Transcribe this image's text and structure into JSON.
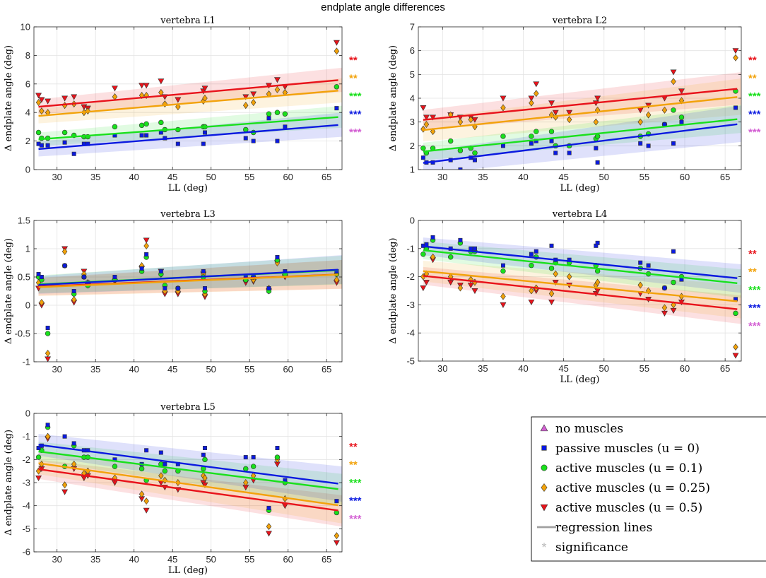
{
  "figure_title": "endplate angle differences",
  "colors": {
    "no_muscles": "#d35fd3",
    "passive": "#0b1ae0",
    "active_01": "#19e01c",
    "active_025": "#f2a20a",
    "active_05": "#e8131b",
    "regression": "#a0a0a0",
    "significance": "#bbbbbb"
  },
  "legend": {
    "entries": [
      {
        "key": "no_muscles",
        "marker": "triangle",
        "label": "no muscles"
      },
      {
        "key": "passive",
        "marker": "square",
        "label": "passive muscles (u = 0)"
      },
      {
        "key": "active_01",
        "marker": "circle",
        "label": "active muscles (u = 0.1)"
      },
      {
        "key": "active_025",
        "marker": "diamond",
        "label": "active muscles (u = 0.25)"
      },
      {
        "key": "active_05",
        "marker": "triangle-down",
        "label": "active muscles (u = 0.5)"
      },
      {
        "key": "regression",
        "marker": "line",
        "label": "regression lines"
      },
      {
        "key": "significance",
        "marker": "asterisk",
        "label": "significance"
      }
    ]
  },
  "chart_data": [
    {
      "type": "scatter",
      "title": "vertebra L1",
      "xlabel": "LL (deg)",
      "ylabel": "Δ endplate angle (deg)",
      "xlim": [
        27,
        67
      ],
      "ylim": [
        0,
        10
      ],
      "xticks": [
        30,
        35,
        40,
        45,
        50,
        55,
        60,
        65
      ],
      "yticks": [
        0,
        2,
        4,
        6,
        8,
        10
      ],
      "x": [
        27.6,
        28,
        28.8,
        31,
        32.2,
        33.5,
        34,
        37.5,
        41,
        41.6,
        43.5,
        44,
        45.7,
        49,
        49.2,
        54.5,
        55.5,
        57.5,
        58.6,
        59.6,
        66.3
      ],
      "series": [
        {
          "name": "active_05",
          "values": [
            5.2,
            4.9,
            4.8,
            5.0,
            5.1,
            4.4,
            4.3,
            5.7,
            5.9,
            5.9,
            6.2,
            5.1,
            4.9,
            5.5,
            5.7,
            5.1,
            5.3,
            5.9,
            6.3,
            5.8,
            8.9
          ],
          "intercept": 4.4,
          "slope": 0.0479,
          "ci": 0.5
        },
        {
          "name": "active_025",
          "values": [
            4.7,
            4.1,
            4.0,
            4.5,
            4.6,
            4.0,
            4.1,
            5.1,
            5.2,
            5.2,
            5.4,
            4.6,
            4.4,
            4.8,
            5.0,
            4.5,
            4.7,
            5.3,
            5.6,
            5.4,
            8.3
          ],
          "intercept": 3.76,
          "slope": 0.0455,
          "ci": 0.5
        },
        {
          "name": "active_01",
          "values": [
            2.6,
            2.2,
            2.2,
            2.6,
            2.4,
            2.3,
            2.3,
            3.0,
            3.1,
            3.2,
            3.3,
            2.8,
            2.8,
            3.0,
            3.0,
            2.8,
            2.6,
            3.9,
            4.0,
            3.9,
            5.8
          ],
          "intercept": 2.12,
          "slope": 0.0401,
          "ci": 0.45
        },
        {
          "name": "passive",
          "values": [
            1.8,
            1.7,
            1.7,
            1.9,
            1.1,
            1.8,
            1.8,
            2.4,
            2.4,
            2.4,
            2.6,
            2.2,
            1.8,
            1.8,
            2.6,
            2.2,
            2.0,
            3.6,
            2.0,
            3.0,
            4.3
          ],
          "intercept": 1.44,
          "slope": 0.0433,
          "ci": 0.5
        }
      ],
      "significance": [
        {
          "series": "active_05",
          "label": "**"
        },
        {
          "series": "active_025",
          "label": "**"
        },
        {
          "series": "active_01",
          "label": "***"
        },
        {
          "series": "passive",
          "label": "***"
        },
        {
          "series": "no_muscles",
          "label": "***"
        }
      ]
    },
    {
      "type": "scatter",
      "title": "vertebra L2",
      "xlabel": "LL (deg)",
      "ylabel": "Δ endplate angle (deg)",
      "xlim": [
        27,
        67
      ],
      "ylim": [
        1,
        7
      ],
      "xticks": [
        30,
        35,
        40,
        45,
        50,
        55,
        60,
        65
      ],
      "yticks": [
        1,
        2,
        3,
        4,
        5,
        6,
        7
      ],
      "x": [
        27.6,
        28,
        28.8,
        31,
        32.2,
        33.5,
        34,
        37.5,
        41,
        41.6,
        43.5,
        44,
        45.7,
        49,
        49.2,
        54.5,
        55.5,
        57.5,
        58.6,
        59.6,
        66.3
      ],
      "series": [
        {
          "name": "active_05",
          "values": [
            3.6,
            3.2,
            3.2,
            3.3,
            3.2,
            3.2,
            3.1,
            4.0,
            4.0,
            4.6,
            3.8,
            3.4,
            3.4,
            3.8,
            4.0,
            3.5,
            3.7,
            4.0,
            5.1,
            4.3,
            6.0
          ],
          "intercept": 3.09,
          "slope": 0.0336,
          "ci": 0.4
        },
        {
          "name": "active_025",
          "values": [
            2.7,
            2.9,
            2.6,
            3.3,
            3.0,
            3.1,
            2.8,
            3.6,
            3.8,
            4.2,
            3.3,
            3.2,
            3.1,
            3.0,
            3.5,
            3.0,
            3.3,
            3.5,
            4.7,
            3.9,
            5.7
          ],
          "intercept": 2.66,
          "slope": 0.0357,
          "ci": 0.45
        },
        {
          "name": "active_01",
          "values": [
            1.9,
            1.7,
            1.9,
            2.2,
            1.8,
            1.9,
            1.7,
            2.4,
            2.4,
            2.6,
            2.6,
            2.0,
            2.0,
            2.3,
            2.4,
            2.4,
            2.5,
            2.9,
            3.5,
            3.2,
            4.3
          ],
          "intercept": 1.76,
          "slope": 0.0349,
          "ci": 0.35
        },
        {
          "name": "passive",
          "values": [
            1.5,
            1.3,
            1.3,
            1.4,
            1.0,
            1.5,
            1.4,
            2.0,
            2.1,
            2.2,
            2.2,
            1.7,
            1.7,
            1.9,
            1.3,
            2.1,
            2.0,
            2.9,
            2.1,
            3.0,
            3.6
          ],
          "intercept": 1.28,
          "slope": 0.0418,
          "ci": 0.45
        }
      ],
      "significance": [
        {
          "series": "active_05",
          "label": "**"
        },
        {
          "series": "active_025",
          "label": "**"
        },
        {
          "series": "active_01",
          "label": "***"
        },
        {
          "series": "passive",
          "label": "***"
        },
        {
          "series": "no_muscles",
          "label": "***"
        }
      ]
    },
    {
      "type": "scatter",
      "title": "vertebra L3",
      "xlabel": "",
      "ylabel": "Δ endplate angle (deg)",
      "xlim": [
        27,
        67
      ],
      "ylim": [
        -1,
        1.5
      ],
      "xticks": [
        30,
        35,
        40,
        45,
        50,
        55,
        60,
        65
      ],
      "yticks": [
        -1,
        -0.5,
        0,
        0.5,
        1,
        1.5
      ],
      "x": [
        27.6,
        28,
        28.8,
        31,
        32.2,
        33.5,
        34,
        37.5,
        41,
        41.6,
        43.5,
        44,
        45.7,
        49,
        49.2,
        54.5,
        55.5,
        57.5,
        58.6,
        59.6,
        66.3
      ],
      "series": [
        {
          "name": "active_05",
          "values": [
            0.3,
            0.0,
            -0.95,
            1.0,
            0.05,
            0.6,
            0.35,
            0.42,
            0.65,
            1.15,
            0.6,
            0.2,
            0.2,
            0.55,
            0.15,
            0.4,
            0.42,
            0.25,
            0.75,
            0.5,
            0.4
          ],
          "intercept": 0.33,
          "slope": 0.0055,
          "ci": 0.15
        },
        {
          "name": "active_025",
          "values": [
            0.4,
            0.05,
            -0.85,
            0.95,
            0.1,
            0.55,
            0.4,
            0.45,
            0.7,
            1.05,
            0.55,
            0.25,
            0.25,
            0.55,
            0.2,
            0.45,
            0.45,
            0.3,
            0.75,
            0.55,
            0.45
          ],
          "intercept": 0.32,
          "slope": 0.0057,
          "ci": 0.15
        },
        {
          "name": "active_01",
          "values": [
            0.5,
            0.45,
            -0.5,
            0.7,
            0.2,
            0.5,
            0.35,
            0.45,
            0.6,
            0.85,
            0.55,
            0.35,
            0.3,
            0.5,
            0.25,
            0.45,
            0.5,
            0.25,
            0.8,
            0.55,
            0.55
          ],
          "intercept": 0.37,
          "slope": 0.0064,
          "ci": 0.15
        },
        {
          "name": "passive",
          "values": [
            0.55,
            0.5,
            -0.4,
            0.7,
            0.25,
            0.5,
            0.4,
            0.5,
            0.65,
            0.9,
            0.6,
            0.3,
            0.3,
            0.6,
            0.3,
            0.5,
            0.5,
            0.3,
            0.85,
            0.6,
            0.6
          ],
          "intercept": 0.36,
          "slope": 0.0069,
          "ci": 0.15
        }
      ],
      "significance": []
    },
    {
      "type": "scatter",
      "title": "vertebra L4",
      "xlabel": "LL (deg)",
      "ylabel": "Δ endplate angle (deg)",
      "xlim": [
        27,
        67
      ],
      "ylim": [
        -5,
        0
      ],
      "xticks": [
        30,
        35,
        40,
        45,
        50,
        55,
        60,
        65
      ],
      "yticks": [
        -5,
        -4,
        -3,
        -2,
        -1,
        0
      ],
      "x": [
        27.6,
        28,
        28.8,
        31,
        32.2,
        33.5,
        34,
        37.5,
        41,
        41.6,
        43.5,
        44,
        45.7,
        49,
        49.2,
        54.5,
        55.5,
        57.5,
        58.6,
        59.6,
        66.3
      ],
      "series": [
        {
          "name": "active_05",
          "values": [
            -2.4,
            -2.2,
            -1.4,
            -2.2,
            -2.3,
            -2.3,
            -2.5,
            -3.0,
            -2.9,
            -2.5,
            -2.9,
            -2.2,
            -2.3,
            -2.6,
            -2.5,
            -2.6,
            -2.8,
            -3.3,
            -3.2,
            -2.9,
            -4.8
          ],
          "intercept": -1.97,
          "slope": -0.0305,
          "ci": 0.3
        },
        {
          "name": "active_025",
          "values": [
            -2.0,
            -1.9,
            -1.3,
            -2.0,
            -2.4,
            -2.1,
            -2.2,
            -2.7,
            -2.5,
            -2.4,
            -2.6,
            -1.9,
            -2.0,
            -2.3,
            -2.2,
            -2.3,
            -2.5,
            -3.1,
            -3.0,
            -2.7,
            -4.5
          ],
          "intercept": -1.8,
          "slope": -0.0276,
          "ci": 0.35
        },
        {
          "name": "active_01",
          "values": [
            -1.2,
            -1.0,
            -0.7,
            -1.3,
            -0.8,
            -1.1,
            -1.1,
            -1.8,
            -1.6,
            -1.3,
            -1.7,
            -1.5,
            -1.5,
            -1.6,
            -1.8,
            -1.7,
            -1.9,
            -2.4,
            -2.2,
            -2.0,
            -3.3
          ],
          "intercept": -1.06,
          "slope": -0.0301,
          "ci": 0.3
        },
        {
          "name": "passive",
          "values": [
            -0.9,
            -0.85,
            -0.6,
            -1.0,
            -0.7,
            -1.0,
            -1.0,
            -1.6,
            -1.2,
            -1.1,
            -0.9,
            -1.4,
            -1.4,
            -0.9,
            -0.8,
            -1.5,
            -1.6,
            -2.4,
            -1.1,
            -2.1,
            -2.8
          ],
          "intercept": -0.92,
          "slope": -0.0291,
          "ci": 0.3
        }
      ],
      "significance": [
        {
          "series": "active_05",
          "label": "**"
        },
        {
          "series": "active_025",
          "label": "**"
        },
        {
          "series": "active_01",
          "label": "***"
        },
        {
          "series": "passive",
          "label": "***"
        },
        {
          "series": "no_muscles",
          "label": "***"
        }
      ]
    },
    {
      "type": "scatter",
      "title": "vertebra L5",
      "xlabel": "LL (deg)",
      "ylabel": "Δ endplate angle (deg)",
      "xlim": [
        27,
        67
      ],
      "ylim": [
        -6,
        0
      ],
      "xticks": [
        30,
        35,
        40,
        45,
        50,
        55,
        60,
        65
      ],
      "yticks": [
        -6,
        -5,
        -4,
        -3,
        -2,
        -1,
        0
      ],
      "x": [
        27.6,
        28,
        28.8,
        31,
        32.2,
        33.5,
        34,
        37.5,
        41,
        41.6,
        43.5,
        44,
        45.7,
        49,
        49.2,
        54.5,
        55.5,
        57.5,
        58.6,
        59.6,
        66.3
      ],
      "series": [
        {
          "name": "active_05",
          "values": [
            -2.8,
            -2.4,
            -1.1,
            -3.4,
            -2.4,
            -2.8,
            -2.7,
            -3.0,
            -3.7,
            -4.2,
            -3.0,
            -3.2,
            -3.3,
            -3.0,
            -3.1,
            -3.2,
            -2.9,
            -5.2,
            -2.2,
            -4.0,
            -5.6
          ],
          "intercept": -2.42,
          "slope": -0.0459,
          "ci": 0.4
        },
        {
          "name": "active_025",
          "values": [
            -2.5,
            -2.2,
            -1.0,
            -3.1,
            -2.2,
            -2.6,
            -2.5,
            -2.8,
            -3.5,
            -3.8,
            -2.7,
            -2.9,
            -3.0,
            -2.7,
            -2.8,
            -3.0,
            -2.7,
            -4.9,
            -2.0,
            -3.7,
            -5.3
          ],
          "intercept": -2.16,
          "slope": -0.0468,
          "ci": 0.45
        },
        {
          "name": "active_01",
          "values": [
            -1.9,
            -1.6,
            -0.6,
            -2.3,
            -1.4,
            -1.9,
            -1.9,
            -2.3,
            -2.4,
            -2.9,
            -2.2,
            -2.5,
            -2.5,
            -2.4,
            -2.0,
            -2.4,
            -2.3,
            -4.2,
            -1.9,
            -3.0,
            -4.3
          ],
          "intercept": -1.65,
          "slope": -0.0419,
          "ci": 0.4
        },
        {
          "name": "passive",
          "values": [
            -1.5,
            -1.4,
            -0.5,
            -1.0,
            -1.3,
            -1.6,
            -1.6,
            -2.0,
            -2.2,
            -1.6,
            -1.7,
            -2.2,
            -2.2,
            -1.8,
            -1.5,
            -1.9,
            -1.9,
            -4.1,
            -1.5,
            -2.9,
            -3.8
          ],
          "intercept": -1.36,
          "slope": -0.0433,
          "ci": 0.45
        }
      ],
      "significance": [
        {
          "series": "active_05",
          "label": "**"
        },
        {
          "series": "active_025",
          "label": "**"
        },
        {
          "series": "active_01",
          "label": "***"
        },
        {
          "series": "passive",
          "label": "***"
        },
        {
          "series": "no_muscles",
          "label": "***"
        }
      ]
    }
  ]
}
